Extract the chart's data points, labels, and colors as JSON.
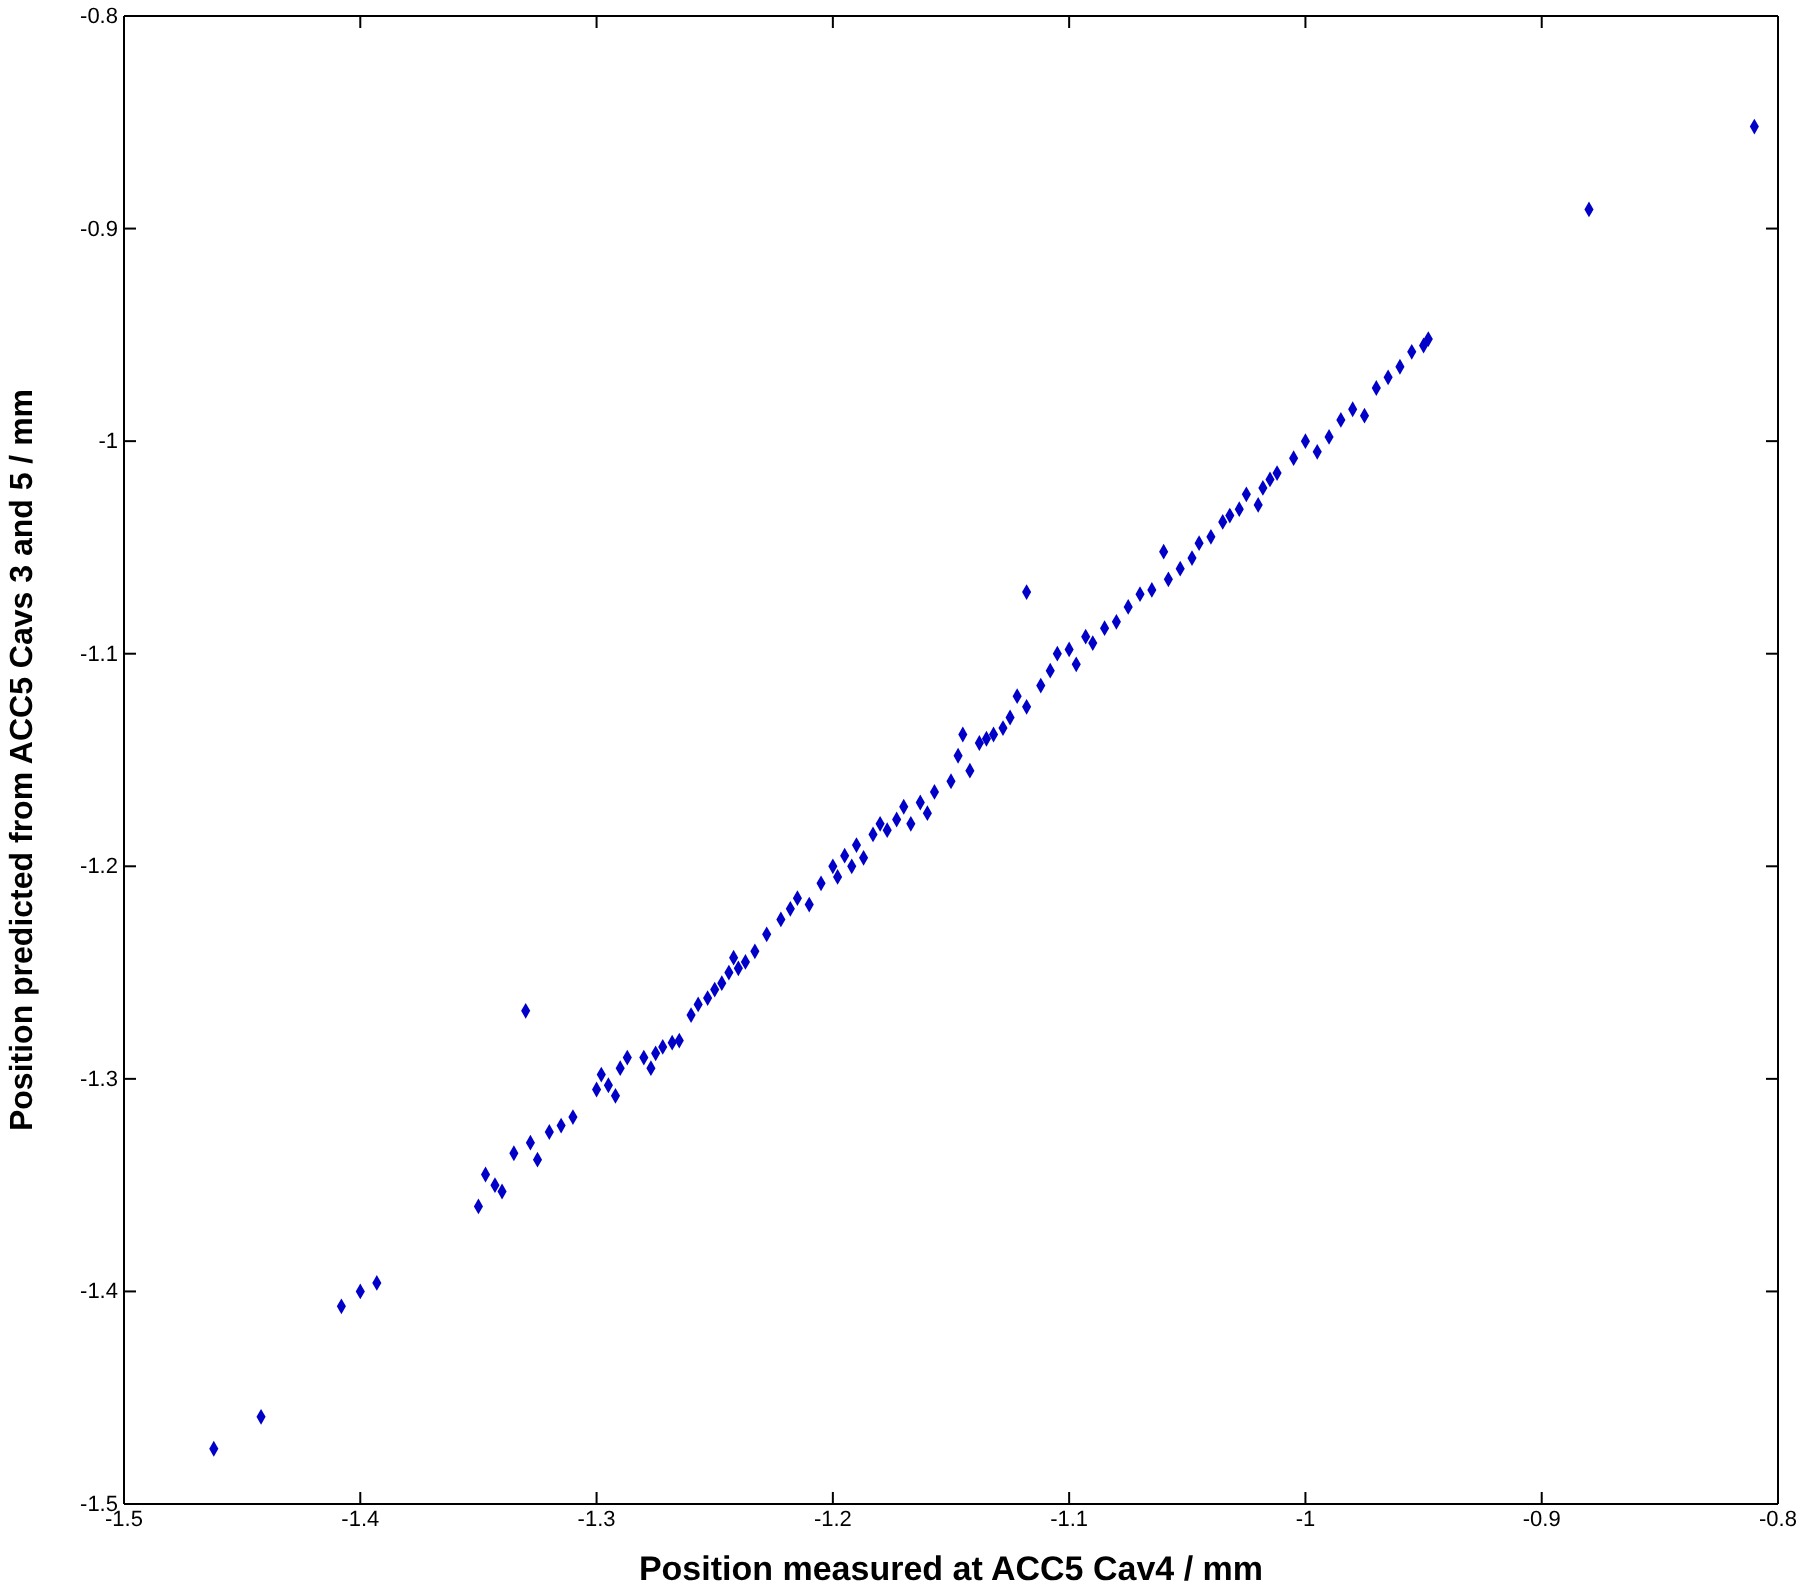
{
  "chart_data": {
    "type": "scatter",
    "xlabel": "Position measured at ACC5 Cav4 / mm",
    "ylabel": "Position predicted from ACC5 Cavs 3 and 5 / mm",
    "xlim": [
      -1.5,
      -0.8
    ],
    "ylim": [
      -1.5,
      -0.8
    ],
    "xticks": [
      -1.5,
      -1.4,
      -1.3,
      -1.2,
      -1.1,
      -1,
      -0.9,
      -0.8
    ],
    "yticks": [
      -1.5,
      -1.4,
      -1.3,
      -1.2,
      -1.1,
      -1,
      -0.9,
      -0.8
    ],
    "grid": false,
    "marker": "diamond",
    "series": [
      {
        "color": "#0000c8",
        "x": [
          -1.462,
          -1.442,
          -1.408,
          -1.4,
          -1.393,
          -1.35,
          -1.347,
          -1.343,
          -1.34,
          -1.335,
          -1.33,
          -1.328,
          -1.325,
          -1.32,
          -1.315,
          -1.31,
          -1.3,
          -1.298,
          -1.295,
          -1.292,
          -1.29,
          -1.287,
          -1.28,
          -1.277,
          -1.275,
          -1.272,
          -1.268,
          -1.265,
          -1.26,
          -1.257,
          -1.253,
          -1.25,
          -1.247,
          -1.244,
          -1.242,
          -1.24,
          -1.237,
          -1.233,
          -1.228,
          -1.222,
          -1.218,
          -1.215,
          -1.21,
          -1.205,
          -1.2,
          -1.198,
          -1.195,
          -1.192,
          -1.19,
          -1.187,
          -1.183,
          -1.18,
          -1.177,
          -1.173,
          -1.17,
          -1.167,
          -1.163,
          -1.16,
          -1.157,
          -1.15,
          -1.147,
          -1.145,
          -1.142,
          -1.138,
          -1.135,
          -1.132,
          -1.128,
          -1.125,
          -1.122,
          -1.118,
          -1.118,
          -1.112,
          -1.108,
          -1.105,
          -1.1,
          -1.097,
          -1.093,
          -1.09,
          -1.085,
          -1.08,
          -1.075,
          -1.07,
          -1.065,
          -1.06,
          -1.058,
          -1.053,
          -1.048,
          -1.045,
          -1.04,
          -1.035,
          -1.032,
          -1.028,
          -1.025,
          -1.02,
          -1.018,
          -1.015,
          -1.012,
          -1.005,
          -1,
          -0.995,
          -0.99,
          -0.985,
          -0.98,
          -0.975,
          -0.97,
          -0.965,
          -0.96,
          -0.955,
          -0.95,
          -0.948,
          -0.88,
          -0.81
        ],
        "values": [
          -1.474,
          -1.459,
          -1.407,
          -1.4,
          -1.396,
          -1.36,
          -1.345,
          -1.35,
          -1.353,
          -1.335,
          -1.268,
          -1.33,
          -1.338,
          -1.325,
          -1.322,
          -1.318,
          -1.305,
          -1.298,
          -1.303,
          -1.308,
          -1.295,
          -1.29,
          -1.29,
          -1.295,
          -1.288,
          -1.285,
          -1.283,
          -1.282,
          -1.27,
          -1.265,
          -1.262,
          -1.258,
          -1.255,
          -1.25,
          -1.243,
          -1.248,
          -1.245,
          -1.24,
          -1.232,
          -1.225,
          -1.22,
          -1.215,
          -1.218,
          -1.208,
          -1.2,
          -1.205,
          -1.195,
          -1.2,
          -1.19,
          -1.196,
          -1.185,
          -1.18,
          -1.183,
          -1.178,
          -1.172,
          -1.18,
          -1.17,
          -1.175,
          -1.165,
          -1.16,
          -1.148,
          -1.138,
          -1.155,
          -1.142,
          -1.14,
          -1.138,
          -1.135,
          -1.13,
          -1.12,
          -1.125,
          -1.071,
          -1.115,
          -1.108,
          -1.1,
          -1.098,
          -1.105,
          -1.092,
          -1.095,
          -1.088,
          -1.085,
          -1.078,
          -1.072,
          -1.07,
          -1.052,
          -1.065,
          -1.06,
          -1.055,
          -1.048,
          -1.045,
          -1.038,
          -1.035,
          -1.032,
          -1.025,
          -1.03,
          -1.022,
          -1.018,
          -1.015,
          -1.008,
          -1,
          -1.005,
          -0.998,
          -0.99,
          -0.985,
          -0.988,
          -0.975,
          -0.97,
          -0.965,
          -0.958,
          -0.955,
          -0.952,
          -0.891,
          -0.852
        ]
      }
    ]
  }
}
